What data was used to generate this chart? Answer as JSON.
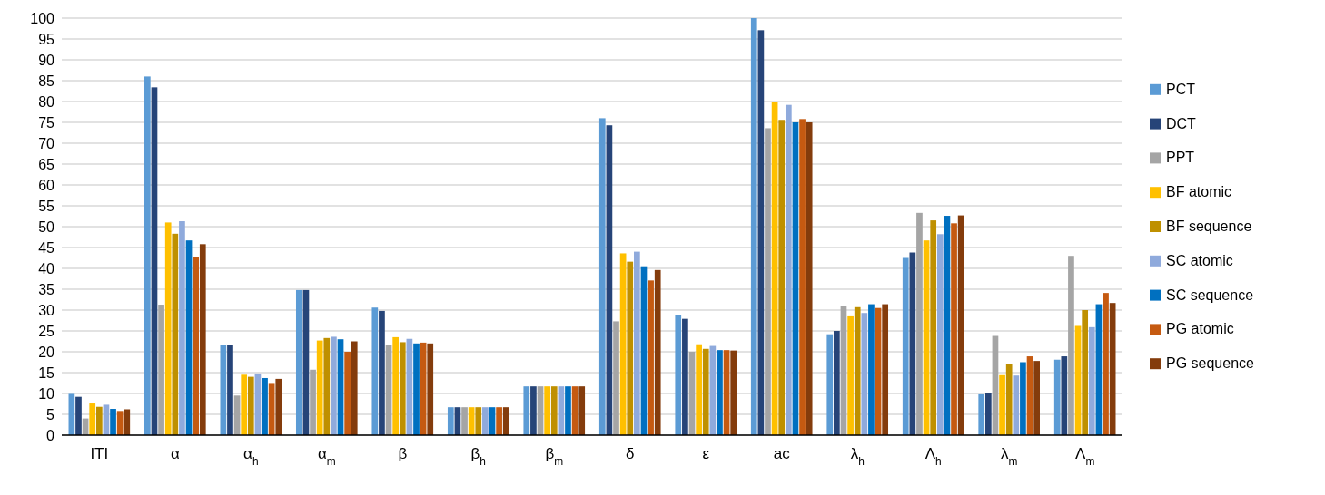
{
  "chart_data": {
    "type": "bar",
    "categories": [
      "ITI",
      "α",
      "α$_{h}$",
      "α$_{m}$",
      "β",
      "β$_{h}$",
      "β$_{m}$",
      "δ",
      "ε",
      "ac",
      "λ$_{h}$",
      "Λ$_{h}$",
      "λ$_{m}$",
      "Λ$_{m}$"
    ],
    "series": [
      {
        "name": "PCT",
        "color": "#5b9bd5",
        "values": [
          9.9,
          86,
          21.6,
          34.8,
          30.6,
          6.7,
          11.7,
          76,
          28.7,
          100,
          24.2,
          42.5,
          9.8,
          18.1
        ]
      },
      {
        "name": "DCT",
        "color": "#264478",
        "values": [
          9.2,
          83.4,
          21.6,
          34.8,
          29.8,
          6.7,
          11.7,
          74.3,
          27.9,
          97.1,
          25,
          43.8,
          10.2,
          18.9
        ]
      },
      {
        "name": "PPT",
        "color": "#a5a5a5",
        "values": [
          4,
          31.3,
          9.5,
          15.7,
          21.6,
          6.7,
          11.7,
          27.3,
          20,
          73.6,
          31,
          53.3,
          23.8,
          43
        ]
      },
      {
        "name": "BF atomic",
        "color": "#ffc000",
        "values": [
          7.6,
          51,
          14.5,
          22.7,
          23.5,
          6.7,
          11.7,
          43.6,
          21.8,
          79.8,
          28.5,
          46.7,
          14.4,
          26.2
        ]
      },
      {
        "name": "BF sequence",
        "color": "#bf9000",
        "values": [
          6.8,
          48.3,
          14,
          23.3,
          22.3,
          6.7,
          11.7,
          41.6,
          20.7,
          75.6,
          30.7,
          51.5,
          17,
          30
        ]
      },
      {
        "name": "SC atomic",
        "color": "#8faadc",
        "values": [
          7.3,
          51.3,
          14.8,
          23.6,
          23.1,
          6.7,
          11.7,
          44,
          21.4,
          79.2,
          29.3,
          48.2,
          14.3,
          25.9
        ]
      },
      {
        "name": "SC sequence",
        "color": "#0070c0",
        "values": [
          6.3,
          46.7,
          13.7,
          23,
          22,
          6.7,
          11.7,
          40.5,
          20.4,
          75,
          31.4,
          52.6,
          17.5,
          31.4
        ]
      },
      {
        "name": "PG atomic",
        "color": "#c55a11",
        "values": [
          5.8,
          42.8,
          12.3,
          20,
          22.2,
          6.7,
          11.7,
          37.1,
          20.4,
          75.8,
          30.5,
          50.8,
          18.9,
          34.1
        ]
      },
      {
        "name": "PG sequence",
        "color": "#843c0c",
        "values": [
          6.2,
          45.8,
          13.5,
          22.5,
          22,
          6.7,
          11.7,
          39.6,
          20.3,
          75,
          31.4,
          52.7,
          17.8,
          31.7
        ]
      }
    ],
    "ylim": [
      0,
      100
    ],
    "yticks": [
      0,
      5,
      10,
      15,
      20,
      25,
      30,
      35,
      40,
      45,
      50,
      55,
      60,
      65,
      70,
      75,
      80,
      85,
      90,
      95,
      100
    ],
    "grid": "y",
    "legend": "right"
  }
}
